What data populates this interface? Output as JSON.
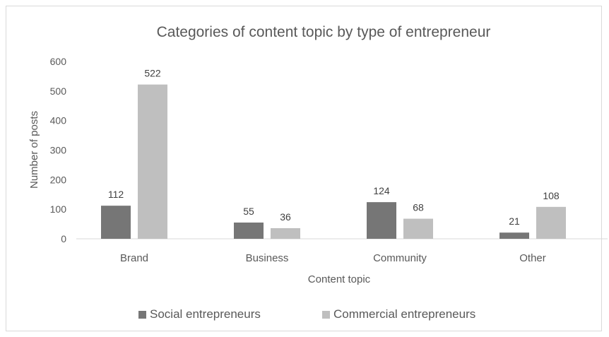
{
  "chart_data": {
    "type": "bar",
    "title": "Categories of content topic by type of entrepreneur",
    "xlabel": "Content topic",
    "ylabel": "Number of posts",
    "categories": [
      "Brand",
      "Business",
      "Community",
      "Other"
    ],
    "series": [
      {
        "name": "Social entrepreneurs",
        "color": "#767676",
        "values": [
          112,
          55,
          124,
          21
        ]
      },
      {
        "name": "Commercial entrepreneurs",
        "color": "#bfbfbf",
        "values": [
          522,
          36,
          68,
          108
        ]
      }
    ],
    "ylim": [
      0,
      600
    ],
    "yticks": [
      0,
      100,
      200,
      300,
      400,
      500,
      600
    ],
    "grid": false,
    "legend_position": "bottom"
  }
}
